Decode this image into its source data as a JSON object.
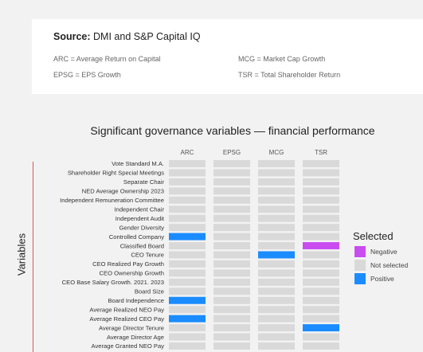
{
  "source": {
    "label": "Source:",
    "text": "DMI and S&P Capital IQ",
    "abbreviations": [
      "ARC = Average Return on Capital",
      "MCG = Market Cap Growth",
      "EPSG = EPS Growth",
      "TSR = Total Shareholder Return"
    ]
  },
  "chart_data": {
    "type": "heatmap",
    "title": "Significant governance variables — financial performance",
    "ylabel": "Variables",
    "columns": [
      "ARC",
      "EPSG",
      "MCG",
      "TSR"
    ],
    "rows": [
      "Vote Standard M.A.",
      "Shareholder Right Special Meetings",
      "Separate Chair",
      "NED Average Ownership 2023",
      "Independent Remuneration Committee",
      "Independent Chair",
      "Independent Audit",
      "Gender Diversity",
      "Controlled Company",
      "Classified Board",
      "CEO Tenure",
      "CEO Realized Pay Growth",
      "CEO Ownership Growth",
      "CEO Base Salary Growth. 2021. 2023",
      "Board Size",
      "Board Independence",
      "Average Realized NEO Pay",
      "Average Realized CEO Pay",
      "Average Director Tenure",
      "Average Director Age",
      "Average Granted NEO Pay"
    ],
    "values": [
      [
        "Not selected",
        "Not selected",
        "Not selected",
        "Not selected"
      ],
      [
        "Not selected",
        "Not selected",
        "Not selected",
        "Not selected"
      ],
      [
        "Not selected",
        "Not selected",
        "Not selected",
        "Not selected"
      ],
      [
        "Not selected",
        "Not selected",
        "Not selected",
        "Not selected"
      ],
      [
        "Not selected",
        "Not selected",
        "Not selected",
        "Not selected"
      ],
      [
        "Not selected",
        "Not selected",
        "Not selected",
        "Not selected"
      ],
      [
        "Not selected",
        "Not selected",
        "Not selected",
        "Not selected"
      ],
      [
        "Not selected",
        "Not selected",
        "Not selected",
        "Not selected"
      ],
      [
        "Positive",
        "Not selected",
        "Not selected",
        "Not selected"
      ],
      [
        "Not selected",
        "Not selected",
        "Not selected",
        "Negative"
      ],
      [
        "Not selected",
        "Not selected",
        "Positive",
        "Not selected"
      ],
      [
        "Not selected",
        "Not selected",
        "Not selected",
        "Not selected"
      ],
      [
        "Not selected",
        "Not selected",
        "Not selected",
        "Not selected"
      ],
      [
        "Not selected",
        "Not selected",
        "Not selected",
        "Not selected"
      ],
      [
        "Not selected",
        "Not selected",
        "Not selected",
        "Not selected"
      ],
      [
        "Positive",
        "Not selected",
        "Not selected",
        "Not selected"
      ],
      [
        "Not selected",
        "Not selected",
        "Not selected",
        "Not selected"
      ],
      [
        "Positive",
        "Not selected",
        "Not selected",
        "Not selected"
      ],
      [
        "Not selected",
        "Not selected",
        "Not selected",
        "Positive"
      ],
      [
        "Not selected",
        "Not selected",
        "Not selected",
        "Not selected"
      ],
      [
        "Not selected",
        "Not selected",
        "Not selected",
        "Not selected"
      ]
    ],
    "legend": {
      "title": "Selected",
      "position": "right",
      "items": [
        {
          "label": "Negative",
          "color": "#c94cf0"
        },
        {
          "label": "Not selected",
          "color": "#d9d9d9"
        },
        {
          "label": "Positive",
          "color": "#1a8cff"
        }
      ]
    }
  }
}
